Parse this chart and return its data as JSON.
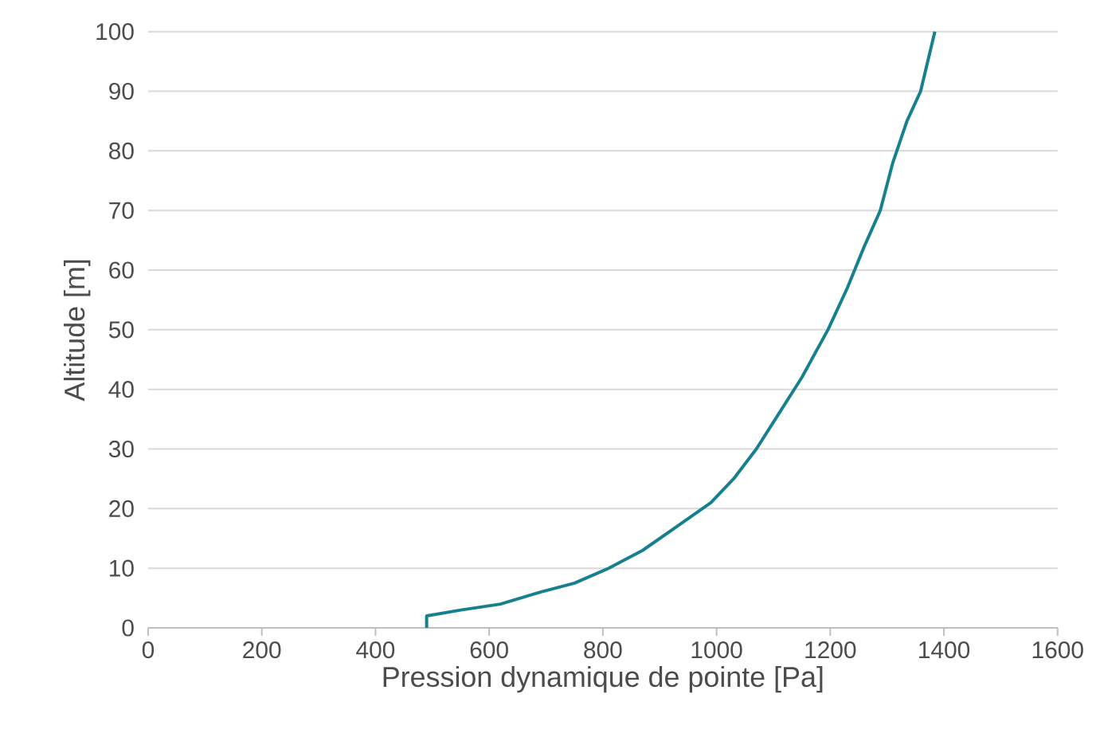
{
  "chart_data": {
    "type": "line",
    "xlabel": "Pression dynamique de pointe [Pa]",
    "ylabel": "Altitude [m]",
    "series": [
      {
        "color": "#17808f",
        "x": [
          490,
          490,
          550,
          620,
          690,
          750,
          810,
          870,
          930,
          990,
          1030,
          1070,
          1110,
          1150,
          1196,
          1230,
          1260,
          1288,
          1310,
          1335,
          1359,
          1384
        ],
        "values": [
          0,
          2,
          3,
          4,
          6,
          7.5,
          10,
          13,
          17,
          21,
          25,
          30,
          36,
          42,
          50,
          57,
          64,
          70,
          78,
          85,
          90,
          100
        ]
      }
    ],
    "xlim": [
      0,
      1600
    ],
    "ylim": [
      0,
      100
    ],
    "xticks": [
      0,
      200,
      400,
      600,
      800,
      1000,
      1200,
      1400,
      1600
    ],
    "yticks": [
      0,
      10,
      20,
      30,
      40,
      50,
      60,
      70,
      80,
      90,
      100
    ],
    "grid": "y",
    "marker": "none",
    "line_style": "solid"
  }
}
